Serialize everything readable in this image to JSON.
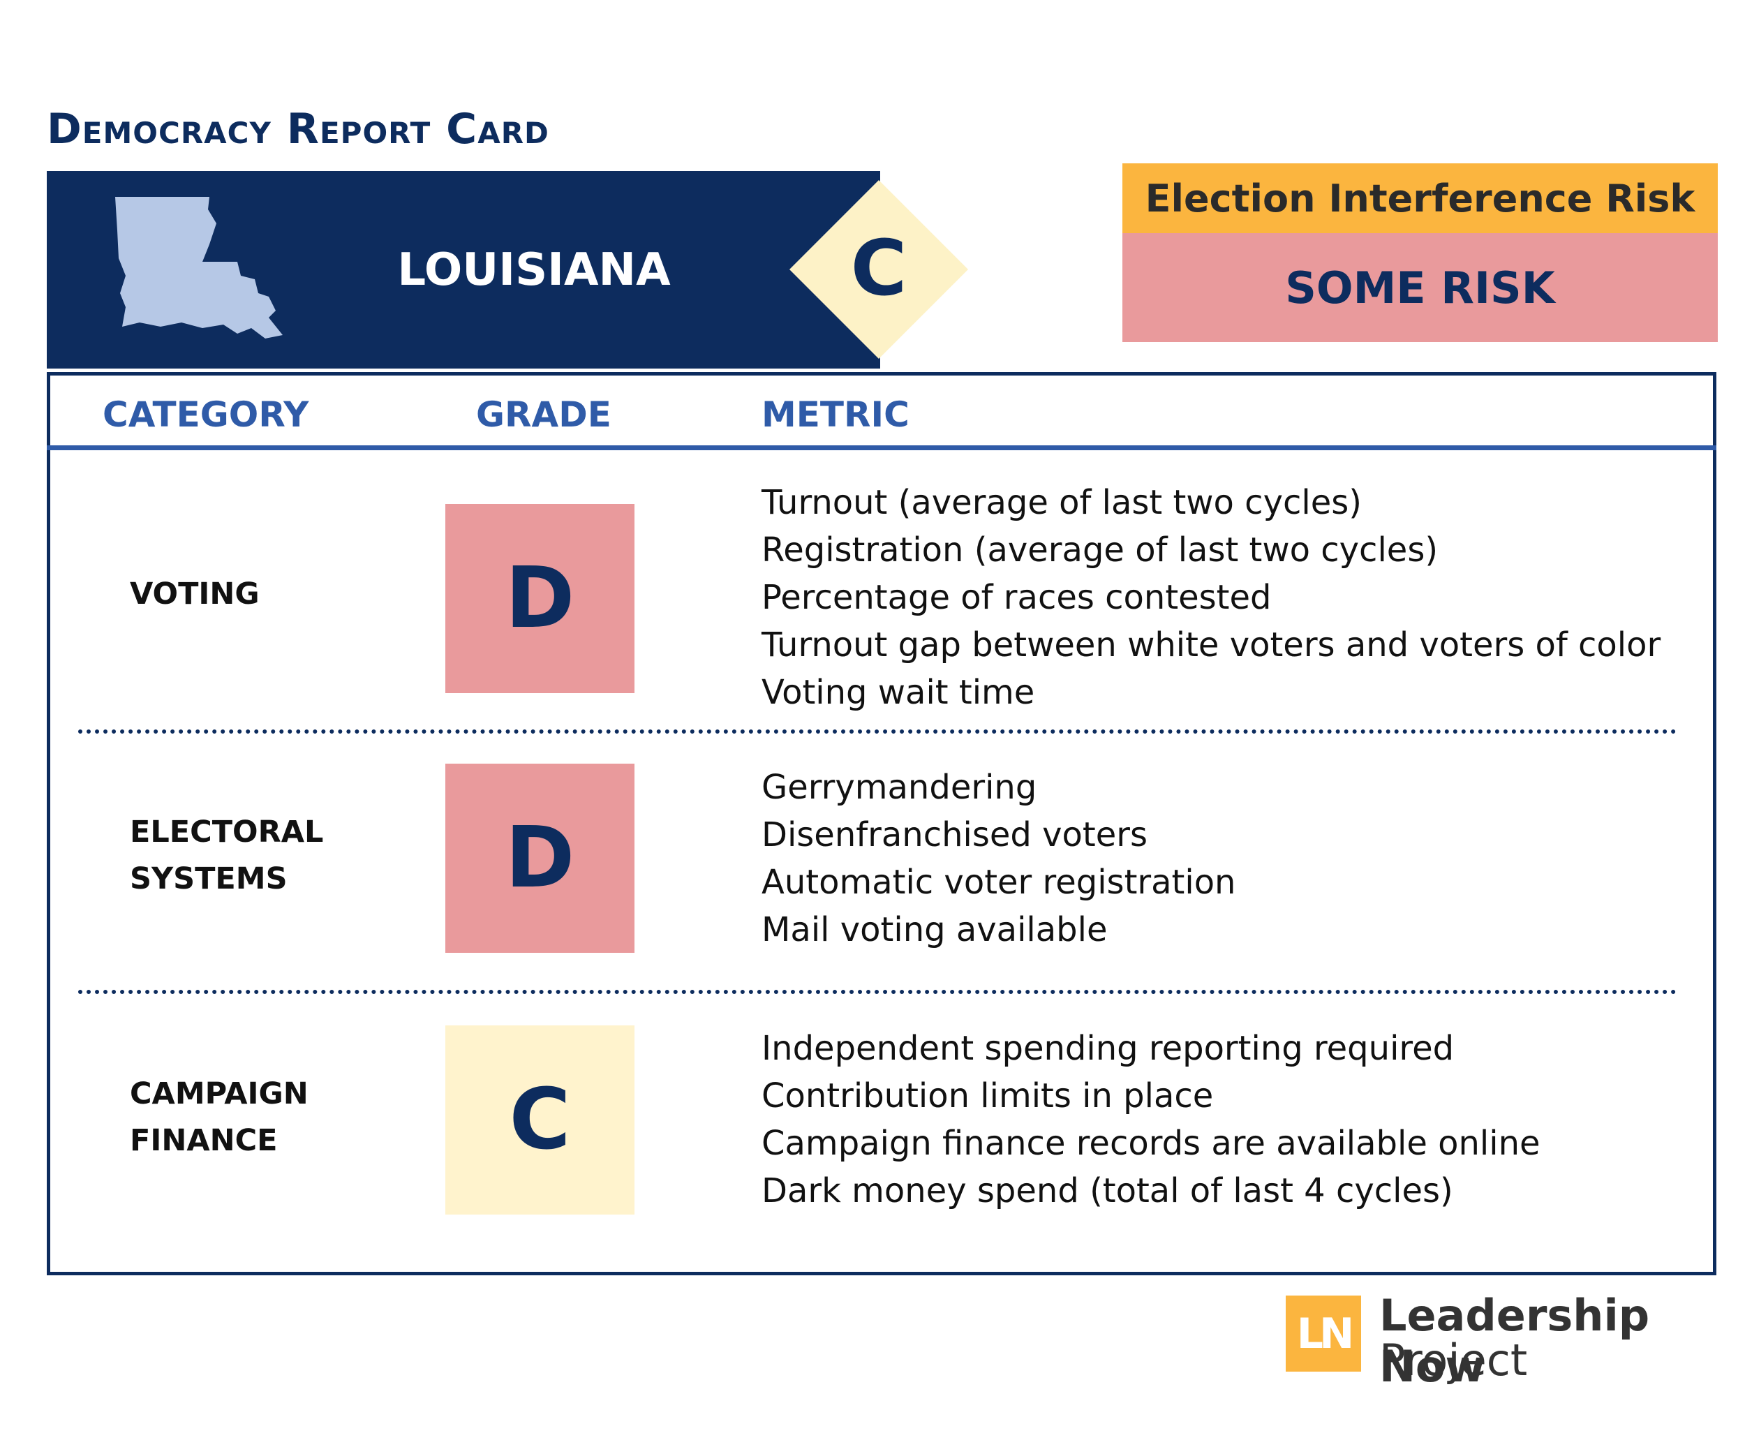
{
  "header": {
    "title": "Democracy Report Card",
    "state": "LOUISIANA",
    "state_grade": "C"
  },
  "risk": {
    "label": "Election Interference Risk",
    "value": "SOME RISK"
  },
  "table": {
    "columns": [
      "CATEGORY",
      "GRADE",
      "METRIC"
    ],
    "rows": [
      {
        "category": "VOTING",
        "grade": "D",
        "color": "#e99a9c",
        "metrics": [
          "Turnout (average of last two cycles)",
          "Registration (average of last two cycles)",
          "Percentage of races contested",
          "Turnout gap between white voters and voters of color",
          "Voting wait time"
        ]
      },
      {
        "category": "ELECTORAL SYSTEMS",
        "grade": "D",
        "color": "#e99a9c",
        "metrics": [
          "Gerrymandering",
          "Disenfranchised voters",
          "Automatic voter registration",
          "Mail voting available"
        ]
      },
      {
        "category": "CAMPAIGN FINANCE",
        "grade": "C",
        "color": "#fff3cd",
        "metrics": [
          "Independent spending reporting required",
          "Contribution limits in place",
          "Campaign finance records are available online",
          "Dark money spend (total of last 4 cycles)"
        ]
      }
    ]
  },
  "logo": {
    "mark": "LN",
    "name": "Leadership Now",
    "sub": "Project"
  }
}
